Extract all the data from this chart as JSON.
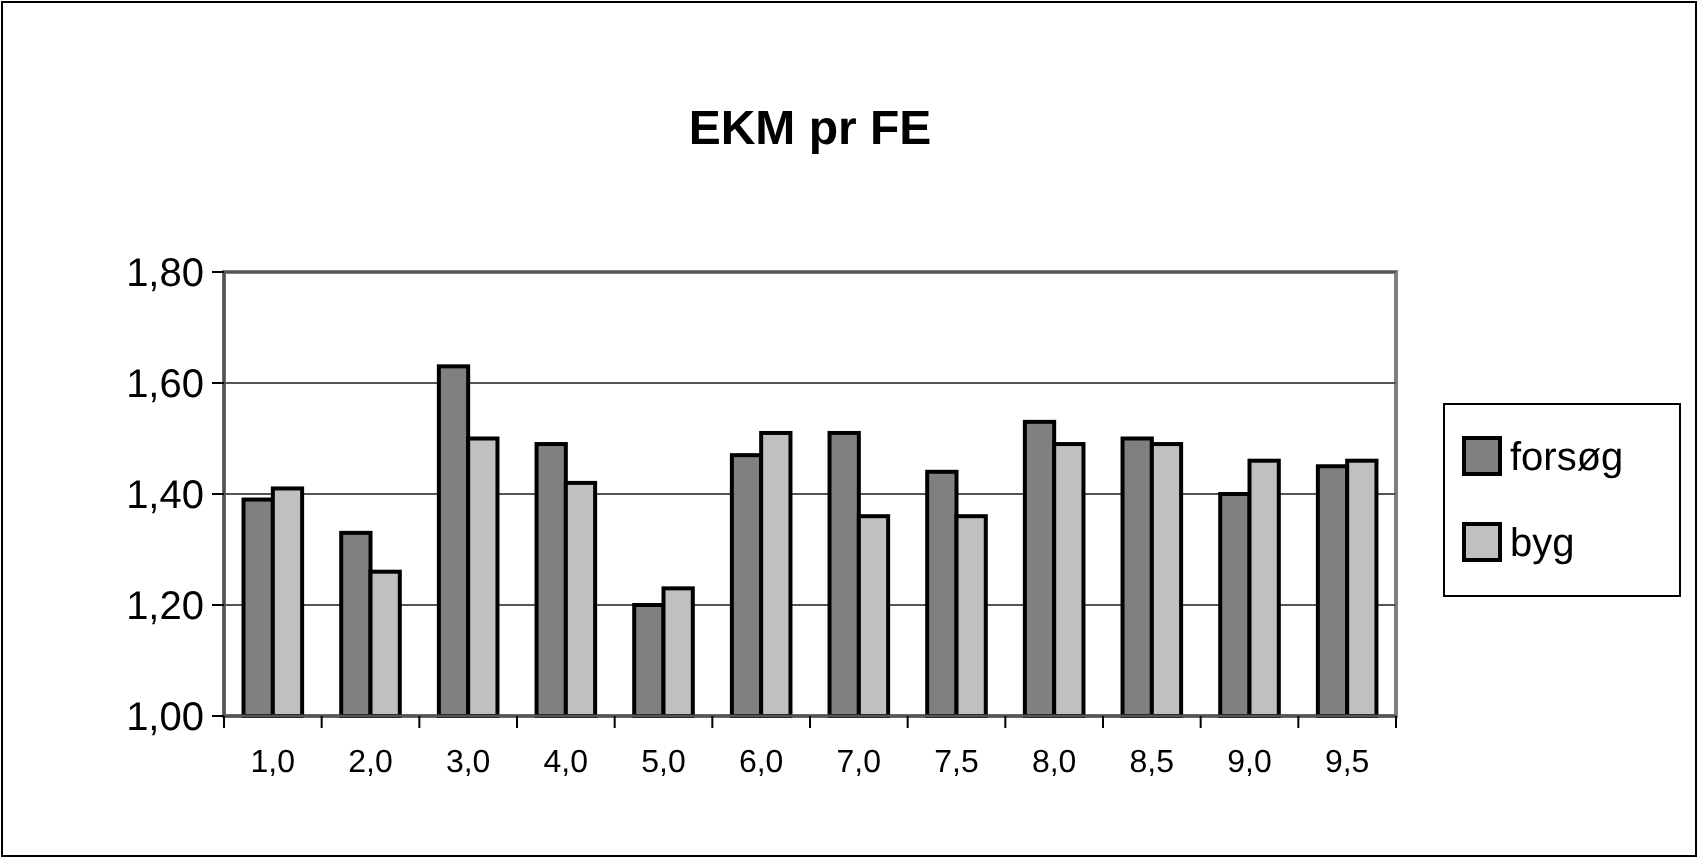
{
  "chart_data": {
    "type": "bar",
    "title": "EKM pr FE",
    "categories": [
      "1,0",
      "2,0",
      "3,0",
      "4,0",
      "5,0",
      "6,0",
      "7,0",
      "7,5",
      "8,0",
      "8,5",
      "9,0",
      "9,5"
    ],
    "series": [
      {
        "name": "forsøg",
        "color": "#808080",
        "values": [
          1.39,
          1.33,
          1.63,
          1.49,
          1.2,
          1.47,
          1.51,
          1.44,
          1.53,
          1.5,
          1.4,
          1.45
        ]
      },
      {
        "name": "byg",
        "color": "#c0c0c0",
        "values": [
          1.41,
          1.26,
          1.5,
          1.42,
          1.23,
          1.51,
          1.36,
          1.36,
          1.49,
          1.49,
          1.46,
          1.46
        ]
      }
    ],
    "ylim": [
      1,
      1.8
    ],
    "yticks": [
      {
        "value": 1,
        "label": "1,00"
      },
      {
        "value": 1.2,
        "label": "1,20"
      },
      {
        "value": 1.4,
        "label": "1,40"
      },
      {
        "value": 1.6,
        "label": "1,60"
      },
      {
        "value": 1.8,
        "label": "1,80"
      }
    ],
    "grid": "y",
    "legend": "right"
  }
}
